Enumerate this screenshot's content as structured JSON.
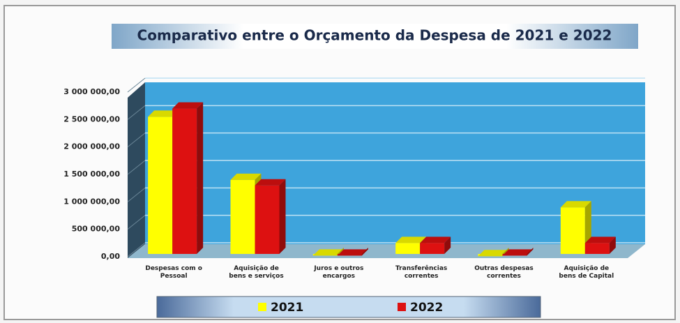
{
  "chart_data": {
    "type": "bar3d",
    "title": "Comparativo entre o Orçamento da Despesa de 2021 e 2022",
    "categories": [
      "Despesas com o\nPessoal",
      "Aquisição de\nbens e serviços",
      "Juros e outros\nencargos",
      "Transferências\ncorrentes",
      "Outras despesas\ncorrentes",
      "Aquisição de\nbens de Capital"
    ],
    "series": [
      {
        "name": "2021",
        "color": "#ffff00",
        "values": [
          2550000,
          1400000,
          20000,
          250000,
          10000,
          900000
        ]
      },
      {
        "name": "2022",
        "color": "#dd1111",
        "values": [
          2700000,
          1300000,
          20000,
          250000,
          20000,
          250000
        ]
      }
    ],
    "ylim": [
      0,
      3000000
    ],
    "yticks": [
      {
        "value": 0,
        "label": "0,00"
      },
      {
        "value": 500000,
        "label": "500 000,00"
      },
      {
        "value": 1000000,
        "label": "1 000 000,00"
      },
      {
        "value": 1500000,
        "label": "1 500 000,00"
      },
      {
        "value": 2000000,
        "label": "2 000 000,00"
      },
      {
        "value": 2500000,
        "label": "2 500 000,00"
      },
      {
        "value": 3000000,
        "label": "3 000 000,00"
      }
    ],
    "grid": true,
    "legend": "bottom"
  }
}
